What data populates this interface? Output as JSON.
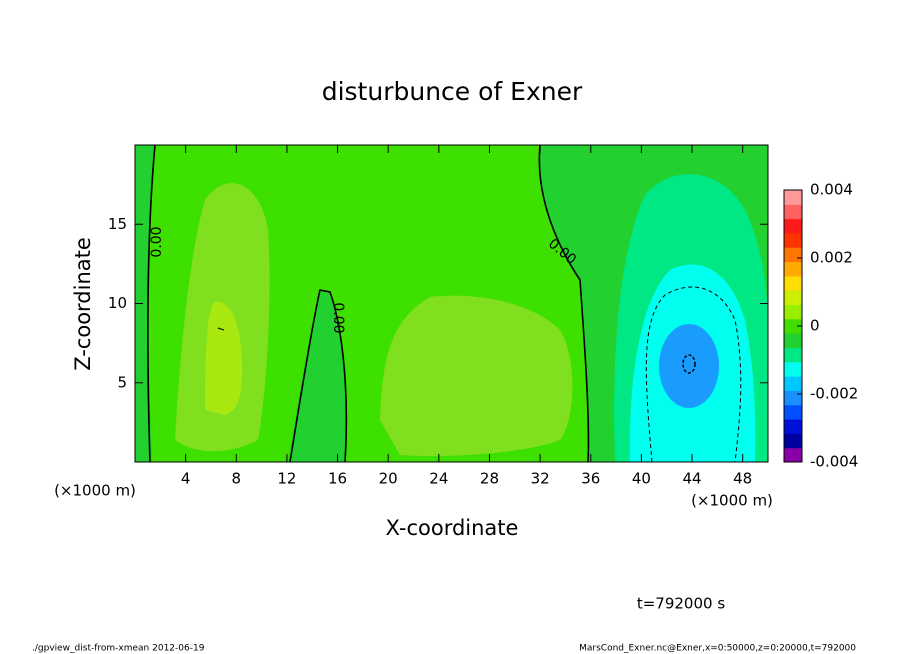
{
  "chart_data": {
    "type": "contour",
    "title": "disturbunce of Exner",
    "x_label": "X-coordinate",
    "y_label": "Z-coordinate",
    "x_unit": "(×1000 m)",
    "xlim": [
      0,
      50
    ],
    "xticks": [
      4,
      8,
      12,
      16,
      20,
      24,
      28,
      32,
      36,
      40,
      44,
      48
    ],
    "ylim": [
      0,
      20
    ],
    "yticks": [
      5,
      10,
      15
    ],
    "clim": [
      -0.004,
      0.004
    ],
    "cticks": [
      0.004,
      0.002,
      0,
      -0.002,
      -0.004
    ],
    "colormap": [
      "#8a00a8",
      "#0000a0",
      "#0010d8",
      "#0050ff",
      "#1890ff",
      "#00c8ff",
      "#00ffee",
      "#00e884",
      "#22d030",
      "#44dd00",
      "#99ee00",
      "#ccee00",
      "#ffdd00",
      "#ffaa00",
      "#ff7700",
      "#ff3300",
      "#ff1a1a",
      "#ff6060",
      "#ff9999"
    ],
    "contour_label": "0.00",
    "time_label": "t=792000 s",
    "footer_left": "./gpview_dist-from-xmean   2012-06-19",
    "footer_right": "MarsCond_Exner.nc@Exner,x=0:50000,z=0:20000,t=792000"
  }
}
